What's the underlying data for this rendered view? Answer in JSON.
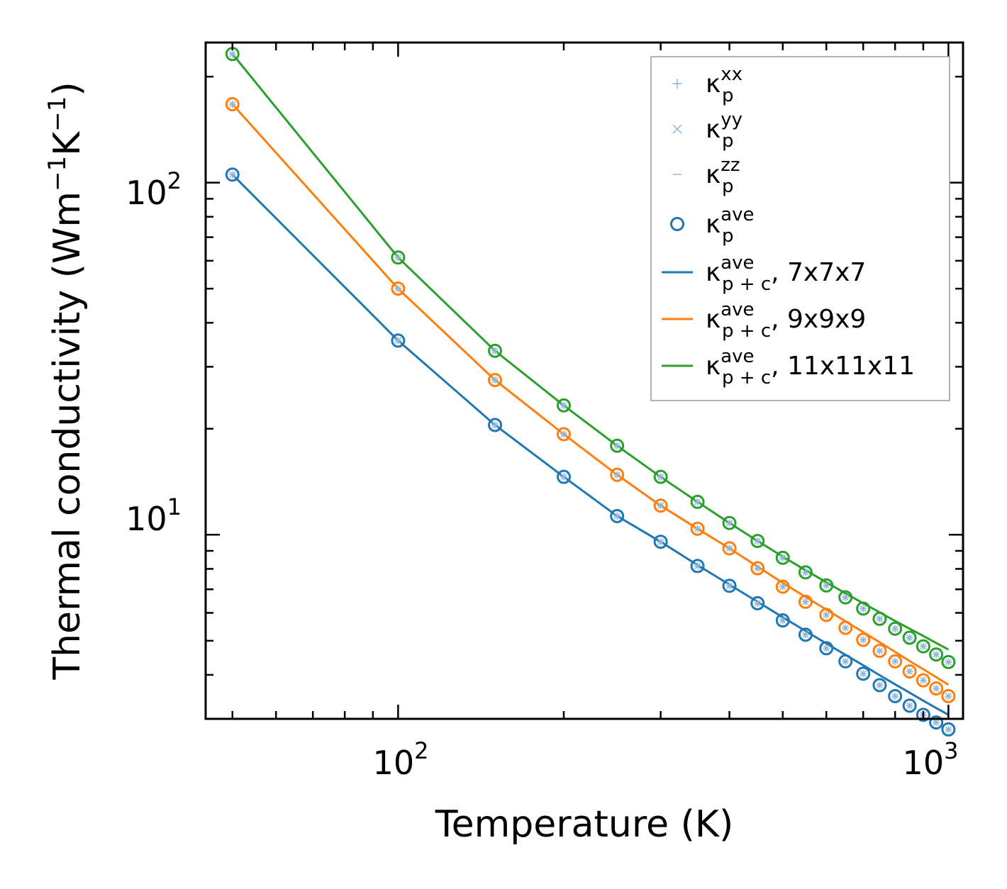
{
  "chart_data": {
    "type": "scatter",
    "xscale": "log",
    "yscale": "log",
    "xlim": [
      44.7,
      1063
    ],
    "ylim": [
      3.0,
      250
    ],
    "xlabel": "Temperature (K)",
    "ylabel": {
      "text": "Thermal conductivity (Wm",
      "exp1": "−1",
      "middle": "K",
      "exp2": "−1",
      "close": ")"
    },
    "x_ticks": [
      {
        "value": 100,
        "base": "10",
        "exp": "2"
      },
      {
        "value": 1000,
        "base": "10",
        "exp": "3"
      }
    ],
    "y_ticks": [
      {
        "value": 10,
        "base": "10",
        "exp": "1"
      },
      {
        "value": 100,
        "base": "10",
        "exp": "2"
      }
    ],
    "x": [
      50,
      100,
      150,
      200,
      250,
      300,
      350,
      400,
      450,
      500,
      550,
      600,
      650,
      700,
      750,
      800,
      850,
      900,
      950,
      1000
    ],
    "series": [
      {
        "name": "7x7x7",
        "color": "#1f77b4",
        "points": [
          105.4,
          35.6,
          20.5,
          14.6,
          11.3,
          9.55,
          8.15,
          7.16,
          6.39,
          5.71,
          5.2,
          4.76,
          4.37,
          4.03,
          3.74,
          3.48,
          3.27,
          3.08,
          2.93,
          2.8
        ],
        "fit": [
          105.4,
          35.6,
          20.5,
          14.6,
          11.3,
          9.55,
          8.2,
          7.22,
          6.45,
          5.83,
          5.33,
          4.91,
          4.56,
          4.26,
          3.99,
          3.76,
          3.56,
          3.38,
          3.22,
          3.08
        ]
      },
      {
        "name": "9x9x9",
        "color": "#ff7f0e",
        "points": [
          167,
          50.0,
          27.5,
          19.3,
          14.8,
          12.1,
          10.4,
          9.15,
          8.03,
          7.12,
          6.45,
          5.92,
          5.44,
          5.03,
          4.68,
          4.37,
          4.09,
          3.86,
          3.66,
          3.48
        ],
        "fit": [
          167,
          50.0,
          27.5,
          19.3,
          14.8,
          12.1,
          10.4,
          9.15,
          8.12,
          7.3,
          6.66,
          6.13,
          5.68,
          5.29,
          4.95,
          4.65,
          4.38,
          4.15,
          3.94,
          3.75
        ]
      },
      {
        "name": "11x11x11",
        "color": "#2ca02c",
        "points": [
          232,
          61.3,
          33.3,
          23.3,
          17.9,
          14.6,
          12.4,
          10.8,
          9.6,
          8.6,
          7.82,
          7.18,
          6.64,
          6.17,
          5.77,
          5.41,
          5.1,
          4.82,
          4.57,
          4.35
        ],
        "fit": [
          232,
          61.3,
          33.3,
          23.3,
          17.9,
          14.6,
          12.4,
          10.8,
          9.6,
          8.67,
          7.93,
          7.33,
          6.82,
          6.39,
          6.02,
          5.69,
          5.41,
          5.16,
          4.93,
          4.72
        ]
      }
    ],
    "legend": {
      "position": "top-right",
      "entries": [
        {
          "marker": "plus",
          "label": "κ",
          "sup": "xx",
          "sub": "p",
          "suffix": ""
        },
        {
          "marker": "cross",
          "label": "κ",
          "sup": "yy",
          "sub": "p",
          "suffix": ""
        },
        {
          "marker": "dash",
          "label": "κ",
          "sup": "zz",
          "sub": "p",
          "suffix": ""
        },
        {
          "marker": "circle",
          "label": "κ",
          "sup": "ave",
          "sub": "p",
          "suffix": ""
        },
        {
          "marker": "line",
          "series": 0,
          "label": "κ",
          "sup": "ave",
          "sub": "p + c",
          "suffix": ", 7x7x7"
        },
        {
          "marker": "line",
          "series": 1,
          "label": "κ",
          "sup": "ave",
          "sub": "p + c",
          "suffix": ", 9x9x9"
        },
        {
          "marker": "line",
          "series": 2,
          "label": "κ",
          "sup": "ave",
          "sub": "p + c",
          "suffix": ", 11x11x11"
        }
      ],
      "marker_color": "#8fb6d9",
      "circle_color": "#1f77b4"
    }
  }
}
